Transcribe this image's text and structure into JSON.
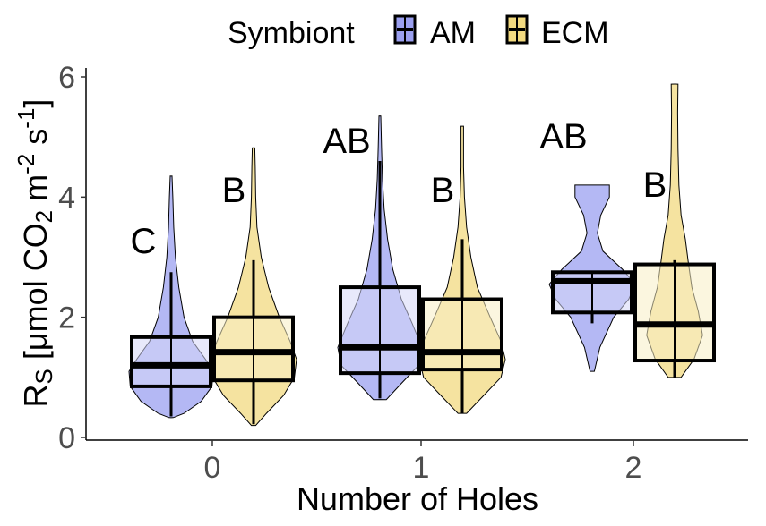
{
  "chart_data": {
    "type": "boxplot-violin",
    "title": "",
    "xlabel": "Number of Holes",
    "ylabel": {
      "main": "R",
      "sub": "S",
      "bracket_open": "[",
      "unit_mu": "μ",
      "unit_mol": "mol",
      "unit_co": "CO",
      "unit_co_sub": "2",
      "unit_m": "m",
      "unit_m_sup": "-2",
      "unit_s": "s",
      "unit_s_sup": "-1",
      "bracket_close": "]"
    },
    "categories": [
      "0",
      "1",
      "2"
    ],
    "ylim": [
      0,
      6.15
    ],
    "yticks": [
      0,
      2,
      4,
      6
    ],
    "legend": {
      "title": "Symbiont",
      "position": "top",
      "entries": [
        {
          "name": "AM",
          "color": "#9BA0F0"
        },
        {
          "name": "ECM",
          "color": "#F2DA80"
        }
      ]
    },
    "series": [
      {
        "name": "AM",
        "color": "#9BA0F0",
        "box_fill": "#D5D7F7",
        "groups": [
          {
            "category": "0",
            "q1": 0.85,
            "median": 1.2,
            "q3": 1.67,
            "whisker_low": 0.35,
            "whisker_high": 2.75,
            "letter": "C",
            "violin": {
              "min": 0.33,
              "max": 4.35,
              "widths": [
                [
                  0.33,
                  0.05
                ],
                [
                  0.4,
                  0.3
                ],
                [
                  0.6,
                  0.7
                ],
                [
                  0.85,
                  0.95
                ],
                [
                  1.1,
                  0.98
                ],
                [
                  1.3,
                  0.8
                ],
                [
                  1.6,
                  0.5
                ],
                [
                  2.0,
                  0.3
                ],
                [
                  2.5,
                  0.18
                ],
                [
                  3.0,
                  0.1
                ],
                [
                  3.5,
                  0.06
                ],
                [
                  4.0,
                  0.04
                ],
                [
                  4.35,
                  0.02
                ]
              ]
            }
          },
          {
            "category": "1",
            "q1": 1.07,
            "median": 1.5,
            "q3": 2.5,
            "whisker_low": 0.65,
            "whisker_high": 4.6,
            "letter": "AB",
            "violin": {
              "min": 0.63,
              "max": 5.35,
              "widths": [
                [
                  0.63,
                  0.15
                ],
                [
                  0.9,
                  0.5
                ],
                [
                  1.2,
                  0.9
                ],
                [
                  1.5,
                  0.98
                ],
                [
                  1.9,
                  0.75
                ],
                [
                  2.3,
                  0.5
                ],
                [
                  2.8,
                  0.3
                ],
                [
                  3.3,
                  0.18
                ],
                [
                  3.8,
                  0.1
                ],
                [
                  4.3,
                  0.06
                ],
                [
                  4.8,
                  0.04
                ],
                [
                  5.35,
                  0.02
                ]
              ]
            }
          },
          {
            "category": "2",
            "q1": 2.08,
            "median": 2.6,
            "q3": 2.75,
            "whisker_low": 1.9,
            "whisker_high": 2.75,
            "letter": "AB",
            "violin": {
              "min": 1.1,
              "max": 4.2,
              "widths": [
                [
                  1.1,
                  0.05
                ],
                [
                  1.5,
                  0.18
                ],
                [
                  2.0,
                  0.5
                ],
                [
                  2.3,
                  0.85
                ],
                [
                  2.55,
                  1.0
                ],
                [
                  2.8,
                  0.7
                ],
                [
                  3.1,
                  0.25
                ],
                [
                  3.4,
                  0.12
                ],
                [
                  3.7,
                  0.2
                ],
                [
                  4.0,
                  0.4
                ],
                [
                  4.2,
                  0.4
                ]
              ]
            }
          }
        ]
      },
      {
        "name": "ECM",
        "color": "#F2DA80",
        "box_fill": "#F8EEC4",
        "groups": [
          {
            "category": "0",
            "q1": 0.95,
            "median": 1.42,
            "q3": 2.0,
            "whisker_low": 0.22,
            "whisker_high": 2.95,
            "letter": "B",
            "violin": {
              "min": 0.2,
              "max": 4.82,
              "widths": [
                [
                  0.2,
                  0.05
                ],
                [
                  0.4,
                  0.3
                ],
                [
                  0.7,
                  0.7
                ],
                [
                  1.0,
                  0.95
                ],
                [
                  1.3,
                  1.0
                ],
                [
                  1.6,
                  0.85
                ],
                [
                  2.0,
                  0.6
                ],
                [
                  2.5,
                  0.35
                ],
                [
                  3.0,
                  0.18
                ],
                [
                  3.5,
                  0.08
                ],
                [
                  4.0,
                  0.05
                ],
                [
                  4.5,
                  0.04
                ],
                [
                  4.82,
                  0.03
                ]
              ]
            }
          },
          {
            "category": "1",
            "q1": 1.13,
            "median": 1.42,
            "q3": 2.3,
            "whisker_low": 0.4,
            "whisker_high": 3.3,
            "letter": "B",
            "violin": {
              "min": 0.4,
              "max": 5.18,
              "widths": [
                [
                  0.4,
                  0.1
                ],
                [
                  0.7,
                  0.5
                ],
                [
                  1.0,
                  0.9
                ],
                [
                  1.3,
                  1.0
                ],
                [
                  1.6,
                  0.9
                ],
                [
                  2.0,
                  0.65
                ],
                [
                  2.5,
                  0.35
                ],
                [
                  3.0,
                  0.2
                ],
                [
                  3.5,
                  0.1
                ],
                [
                  4.0,
                  0.05
                ],
                [
                  4.5,
                  0.03
                ],
                [
                  5.18,
                  0.03
                ]
              ]
            }
          },
          {
            "category": "2",
            "q1": 1.28,
            "median": 1.88,
            "q3": 2.88,
            "whisker_low": 1.0,
            "whisker_high": 2.95,
            "letter": "B",
            "violin": {
              "min": 1.0,
              "max": 5.88,
              "widths": [
                [
                  1.0,
                  0.15
                ],
                [
                  1.3,
                  0.45
                ],
                [
                  1.7,
                  0.65
                ],
                [
                  2.1,
                  0.55
                ],
                [
                  2.5,
                  0.4
                ],
                [
                  2.9,
                  0.32
                ],
                [
                  3.3,
                  0.25
                ],
                [
                  3.7,
                  0.15
                ],
                [
                  4.2,
                  0.1
                ],
                [
                  4.8,
                  0.08
                ],
                [
                  5.4,
                  0.07
                ],
                [
                  5.88,
                  0.08
                ]
              ]
            }
          }
        ]
      }
    ]
  }
}
